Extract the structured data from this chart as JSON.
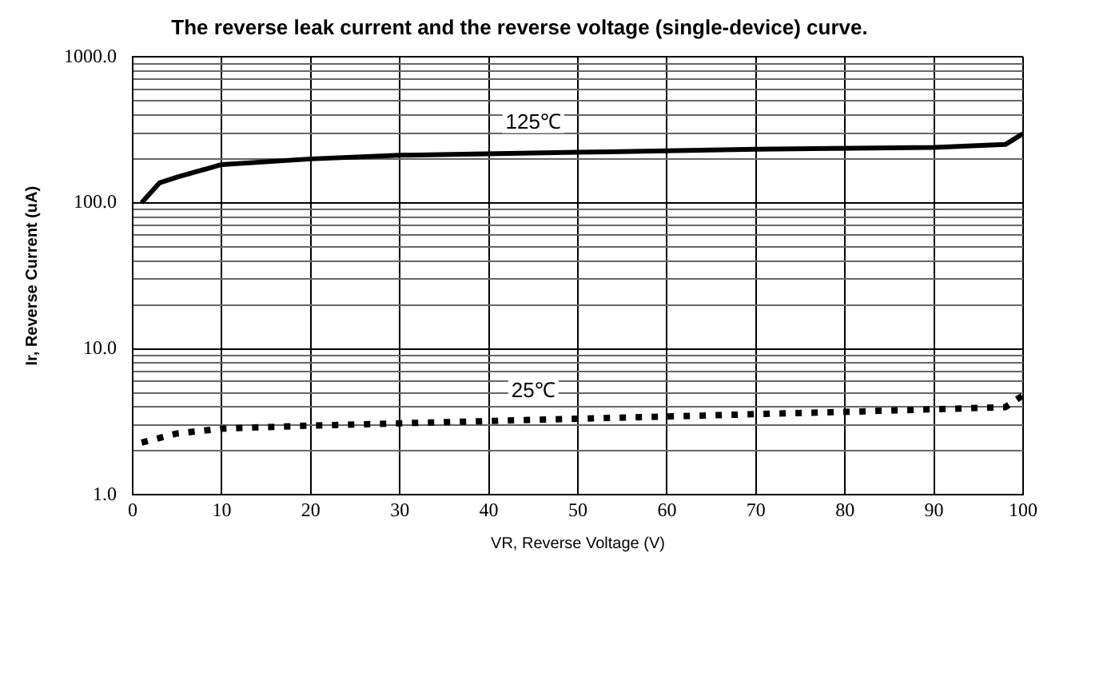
{
  "chart_data": {
    "type": "line",
    "title": "The reverse leak current and the reverse voltage (single-device) curve.",
    "xlabel": "VR, Reverse Voltage (V)",
    "ylabel": "Ir, Reverse Current (uA)",
    "log": "y",
    "grid": true,
    "legend": false,
    "marker": "none",
    "xlim": [
      0,
      100
    ],
    "xticks": [
      0,
      10,
      20,
      30,
      40,
      50,
      60,
      70,
      80,
      90,
      100
    ],
    "ylim": [
      1,
      1000
    ],
    "yticks": [
      {
        "value": 1,
        "label": "1.0"
      },
      {
        "value": 2,
        "label": null
      },
      {
        "value": 3,
        "label": null
      },
      {
        "value": 4,
        "label": null
      },
      {
        "value": 5,
        "label": null
      },
      {
        "value": 6,
        "label": null
      },
      {
        "value": 7,
        "label": null
      },
      {
        "value": 8,
        "label": null
      },
      {
        "value": 9,
        "label": null
      },
      {
        "value": 10,
        "label": "10.0"
      },
      {
        "value": 20,
        "label": null
      },
      {
        "value": 30,
        "label": null
      },
      {
        "value": 40,
        "label": null
      },
      {
        "value": 50,
        "label": null
      },
      {
        "value": 60,
        "label": null
      },
      {
        "value": 70,
        "label": null
      },
      {
        "value": 80,
        "label": null
      },
      {
        "value": 90,
        "label": null
      },
      {
        "value": 100,
        "label": "100.0"
      },
      {
        "value": 200,
        "label": null
      },
      {
        "value": 300,
        "label": null
      },
      {
        "value": 400,
        "label": null
      },
      {
        "value": 500,
        "label": null
      },
      {
        "value": 600,
        "label": null
      },
      {
        "value": 700,
        "label": null
      },
      {
        "value": 800,
        "label": null
      },
      {
        "value": 900,
        "label": null
      },
      {
        "value": 1000,
        "label": "1000.0"
      }
    ],
    "series": [
      {
        "name": "125℃",
        "color": "#000000",
        "line_style": "solid",
        "x": [
          1,
          3,
          5,
          10,
          20,
          30,
          50,
          70,
          90,
          98,
          100
        ],
        "values": [
          100,
          137,
          150,
          183,
          200,
          212,
          222,
          233,
          240,
          251,
          298
        ]
      },
      {
        "name": "25℃",
        "color": "#000000",
        "line_style": "dotted",
        "x": [
          1,
          5,
          10,
          20,
          40,
          60,
          80,
          98,
          100
        ],
        "values": [
          2.28,
          2.63,
          2.84,
          2.98,
          3.2,
          3.44,
          3.7,
          3.98,
          4.8
        ]
      }
    ]
  }
}
